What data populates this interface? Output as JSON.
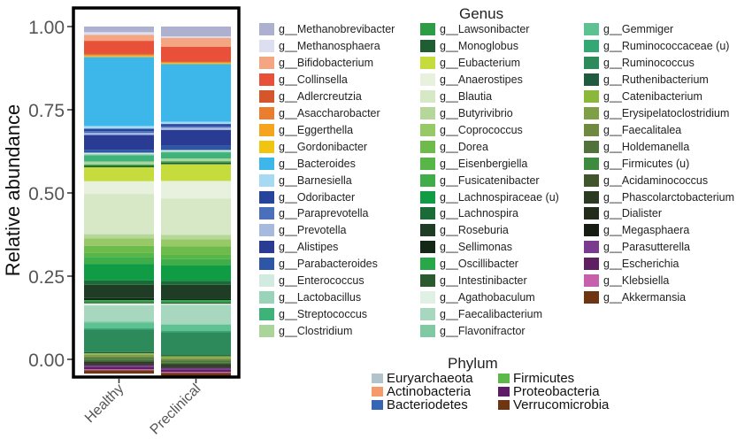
{
  "chart_data": {
    "type": "bar",
    "stacked": true,
    "ylabel": "Relative abundance",
    "ylim": [
      0,
      1
    ],
    "yticks": [
      "0.00",
      "0.25",
      "0.50",
      "0.75",
      "1.00"
    ],
    "categories": [
      "Healthy",
      "Preclinical"
    ],
    "legend_genus_title": "Genus",
    "legend_phylum_title": "Phylum",
    "genus": [
      {
        "name": "g__Methanobrevibacter",
        "color": "#aeb0d0"
      },
      {
        "name": "g__Methanosphaera",
        "color": "#dcdff0"
      },
      {
        "name": "g__Bifidobacterium",
        "color": "#f4a582"
      },
      {
        "name": "g__Collinsella",
        "color": "#e8503a"
      },
      {
        "name": "g__Adlercreutzia",
        "color": "#d6562b"
      },
      {
        "name": "g__Asaccharobacter",
        "color": "#ea7e2e"
      },
      {
        "name": "g__Eggerthella",
        "color": "#f4a51d"
      },
      {
        "name": "g__Gordonibacter",
        "color": "#f1c40f"
      },
      {
        "name": "g__Bacteroides",
        "color": "#3db6ea"
      },
      {
        "name": "g__Barnesiella",
        "color": "#a6d9f2"
      },
      {
        "name": "g__Odoribacter",
        "color": "#27449b"
      },
      {
        "name": "g__Paraprevotella",
        "color": "#4a6fbb"
      },
      {
        "name": "g__Prevotella",
        "color": "#a6b9de"
      },
      {
        "name": "g__Alistipes",
        "color": "#2a3b94"
      },
      {
        "name": "g__Parabacteroides",
        "color": "#2d57a6"
      },
      {
        "name": "g__Enterococcus",
        "color": "#d2ebe0"
      },
      {
        "name": "g__Lactobacillus",
        "color": "#99d3b9"
      },
      {
        "name": "g__Streptococcus",
        "color": "#3fb27a"
      },
      {
        "name": "g__Clostridium",
        "color": "#a9d59b"
      },
      {
        "name": "g__Lawsonibacter",
        "color": "#2e9b45"
      },
      {
        "name": "g__Monoglobus",
        "color": "#1f5e32"
      },
      {
        "name": "g__Eubacterium",
        "color": "#c5dc3c"
      },
      {
        "name": "g__Anaerostipes",
        "color": "#e8f1de"
      },
      {
        "name": "g__Blautia",
        "color": "#d6e8c6"
      },
      {
        "name": "g__Butyrivibrio",
        "color": "#b5d89a"
      },
      {
        "name": "g__Coprococcus",
        "color": "#97c966"
      },
      {
        "name": "g__Dorea",
        "color": "#6dbb4a"
      },
      {
        "name": "g__Eisenbergiella",
        "color": "#58b548"
      },
      {
        "name": "g__Fusicatenibacter",
        "color": "#3fae4a"
      },
      {
        "name": "g__Lachnospiraceae (u)",
        "color": "#109c45"
      },
      {
        "name": "g__Lachnospira",
        "color": "#1a6b38"
      },
      {
        "name": "g__Roseburia",
        "color": "#1e3d24"
      },
      {
        "name": "g__Sellimonas",
        "color": "#142817"
      },
      {
        "name": "g__Oscillibacter",
        "color": "#29a84a"
      },
      {
        "name": "g__Intestinibacter",
        "color": "#2b5a2f"
      },
      {
        "name": "g__Agathobaculum",
        "color": "#e0f0e4"
      },
      {
        "name": "g__Faecalibacterium",
        "color": "#a8d7bf"
      },
      {
        "name": "g__Flavonifractor",
        "color": "#7fcaa3"
      },
      {
        "name": "g__Gemmiger",
        "color": "#5dc192"
      },
      {
        "name": "g__Ruminococcaceae (u)",
        "color": "#34a874"
      },
      {
        "name": "g__Ruminococcus",
        "color": "#2d8a5b"
      },
      {
        "name": "g__Ruthenibacterium",
        "color": "#1f5b3e"
      },
      {
        "name": "g__Catenibacterium",
        "color": "#8bb83a"
      },
      {
        "name": "g__Erysipelatoclostridium",
        "color": "#7e9f45"
      },
      {
        "name": "g__Faecalitalea",
        "color": "#6f8a3e"
      },
      {
        "name": "g__Holdemanella",
        "color": "#51733a"
      },
      {
        "name": "g__Firmicutes (u)",
        "color": "#3e8a3f"
      },
      {
        "name": "g__Acidaminococcus",
        "color": "#40552c"
      },
      {
        "name": "g__Phascolarctobacterium",
        "color": "#2c3a22"
      },
      {
        "name": "g__Dialister",
        "color": "#232b1b"
      },
      {
        "name": "g__Megasphaera",
        "color": "#171c12"
      },
      {
        "name": "g__Parasutterella",
        "color": "#7a3a8e"
      },
      {
        "name": "g__Escherichia",
        "color": "#5e2062"
      },
      {
        "name": "g__Klebsiella",
        "color": "#c660ad"
      },
      {
        "name": "g__Akkermansia",
        "color": "#6e3513"
      }
    ],
    "series": [
      {
        "genus": "g__Methanobrevibacter",
        "values": [
          0.017,
          0.03
        ]
      },
      {
        "genus": "g__Methanosphaera",
        "values": [
          0.008,
          0.004
        ]
      },
      {
        "genus": "g__Bifidobacterium",
        "values": [
          0.018,
          0.027
        ]
      },
      {
        "genus": "g__Collinsella",
        "values": [
          0.037,
          0.043
        ]
      },
      {
        "genus": "g__Adlercreutzia",
        "values": [
          0.004,
          0.003
        ]
      },
      {
        "genus": "g__Asaccharobacter",
        "values": [
          0.003,
          0.002
        ]
      },
      {
        "genus": "g__Eggerthella",
        "values": [
          0.003,
          0.002
        ]
      },
      {
        "genus": "g__Gordonibacter",
        "values": [
          0.002,
          0.002
        ]
      },
      {
        "genus": "g__Bacteroides",
        "values": [
          0.207,
          0.173
        ]
      },
      {
        "genus": "g__Barnesiella",
        "values": [
          0.008,
          0.007
        ]
      },
      {
        "genus": "g__Odoribacter",
        "values": [
          0.007,
          0.007
        ]
      },
      {
        "genus": "g__Paraprevotella",
        "values": [
          0.006,
          0.004
        ]
      },
      {
        "genus": "g__Prevotella",
        "values": [
          0.006,
          0.007
        ]
      },
      {
        "genus": "g__Alistipes",
        "values": [
          0.044,
          0.047
        ]
      },
      {
        "genus": "g__Parabacteroides",
        "values": [
          0.009,
          0.013
        ]
      },
      {
        "genus": "g__Enterococcus",
        "values": [
          0.004,
          0.004
        ]
      },
      {
        "genus": "g__Lactobacillus",
        "values": [
          0.004,
          0.003
        ]
      },
      {
        "genus": "g__Streptococcus",
        "values": [
          0.019,
          0.019
        ]
      },
      {
        "genus": "g__Clostridium",
        "values": [
          0.009,
          0.008
        ]
      },
      {
        "genus": "g__Lawsonibacter",
        "values": [
          0.004,
          0.004
        ]
      },
      {
        "genus": "g__Monoglobus",
        "values": [
          0.004,
          0.005
        ]
      },
      {
        "genus": "g__Eubacterium",
        "values": [
          0.042,
          0.05
        ]
      },
      {
        "genus": "g__Anaerostipes",
        "values": [
          0.038,
          0.053
        ]
      },
      {
        "genus": "g__Blautia",
        "values": [
          0.121,
          0.109
        ]
      },
      {
        "genus": "g__Butyrivibrio",
        "values": [
          0.013,
          0.013
        ]
      },
      {
        "genus": "g__Coprococcus",
        "values": [
          0.022,
          0.022
        ]
      },
      {
        "genus": "g__Dorea",
        "values": [
          0.021,
          0.025
        ]
      },
      {
        "genus": "g__Eisenbergiella",
        "values": [
          0.012,
          0.013
        ]
      },
      {
        "genus": "g__Fusicatenibacter",
        "values": [
          0.022,
          0.019
        ]
      },
      {
        "genus": "g__Lachnospiraceae (u)",
        "values": [
          0.049,
          0.046
        ]
      },
      {
        "genus": "g__Lachnospira",
        "values": [
          0.013,
          0.012
        ]
      },
      {
        "genus": "g__Roseburia",
        "values": [
          0.04,
          0.042
        ]
      },
      {
        "genus": "g__Sellimonas",
        "values": [
          0.006,
          0.004
        ]
      },
      {
        "genus": "g__Oscillibacter",
        "values": [
          0.006,
          0.007
        ]
      },
      {
        "genus": "g__Intestinibacter",
        "values": [
          0.004,
          0.004
        ]
      },
      {
        "genus": "g__Agathobaculum",
        "values": [
          0.006,
          0.003
        ]
      },
      {
        "genus": "g__Faecalibacterium",
        "values": [
          0.048,
          0.058
        ]
      },
      {
        "genus": "g__Flavonifractor",
        "values": [
          0.003,
          0.002
        ]
      },
      {
        "genus": "g__Gemmiger",
        "values": [
          0.018,
          0.018
        ]
      },
      {
        "genus": "g__Ruminococcaceae (u)",
        "values": [
          0.004,
          0.004
        ]
      },
      {
        "genus": "g__Ruminococcus",
        "values": [
          0.067,
          0.069
        ]
      },
      {
        "genus": "g__Ruthenibacterium",
        "values": [
          0.004,
          0.004
        ]
      },
      {
        "genus": "g__Catenibacterium",
        "values": [
          0.004,
          0.004
        ]
      },
      {
        "genus": "g__Erysipelatoclostridium",
        "values": [
          0.004,
          0.004
        ]
      },
      {
        "genus": "g__Faecalitalea",
        "values": [
          0.004,
          0.004
        ]
      },
      {
        "genus": "g__Holdemanella",
        "values": [
          0.005,
          0.006
        ]
      },
      {
        "genus": "g__Firmicutes (u)",
        "values": [
          0.004,
          0.003
        ]
      },
      {
        "genus": "g__Acidaminococcus",
        "values": [
          0.004,
          0.004
        ]
      },
      {
        "genus": "g__Phascolarctobacterium",
        "values": [
          0.004,
          0.003
        ]
      },
      {
        "genus": "g__Dialister",
        "values": [
          0.004,
          0.004
        ]
      },
      {
        "genus": "g__Megasphaera",
        "values": [
          0.003,
          0.003
        ]
      },
      {
        "genus": "g__Parasutterella",
        "values": [
          0.005,
          0.005
        ]
      },
      {
        "genus": "g__Escherichia",
        "values": [
          0.007,
          0.007
        ]
      },
      {
        "genus": "g__Klebsiella",
        "values": [
          0.003,
          0.003
        ]
      },
      {
        "genus": "g__Akkermansia",
        "values": [
          0.01,
          0.009
        ]
      }
    ],
    "phylum": [
      {
        "name": "Euryarchaeota",
        "color": "#b3c3cc"
      },
      {
        "name": "Actinobacteria",
        "color": "#f59a6a"
      },
      {
        "name": "Bacteriodetes",
        "color": "#3666b3"
      },
      {
        "name": "Firmicutes",
        "color": "#5cb848"
      },
      {
        "name": "Proteobacteria",
        "color": "#5e1c66"
      },
      {
        "name": "Verrucomicrobia",
        "color": "#6e3513"
      }
    ]
  }
}
